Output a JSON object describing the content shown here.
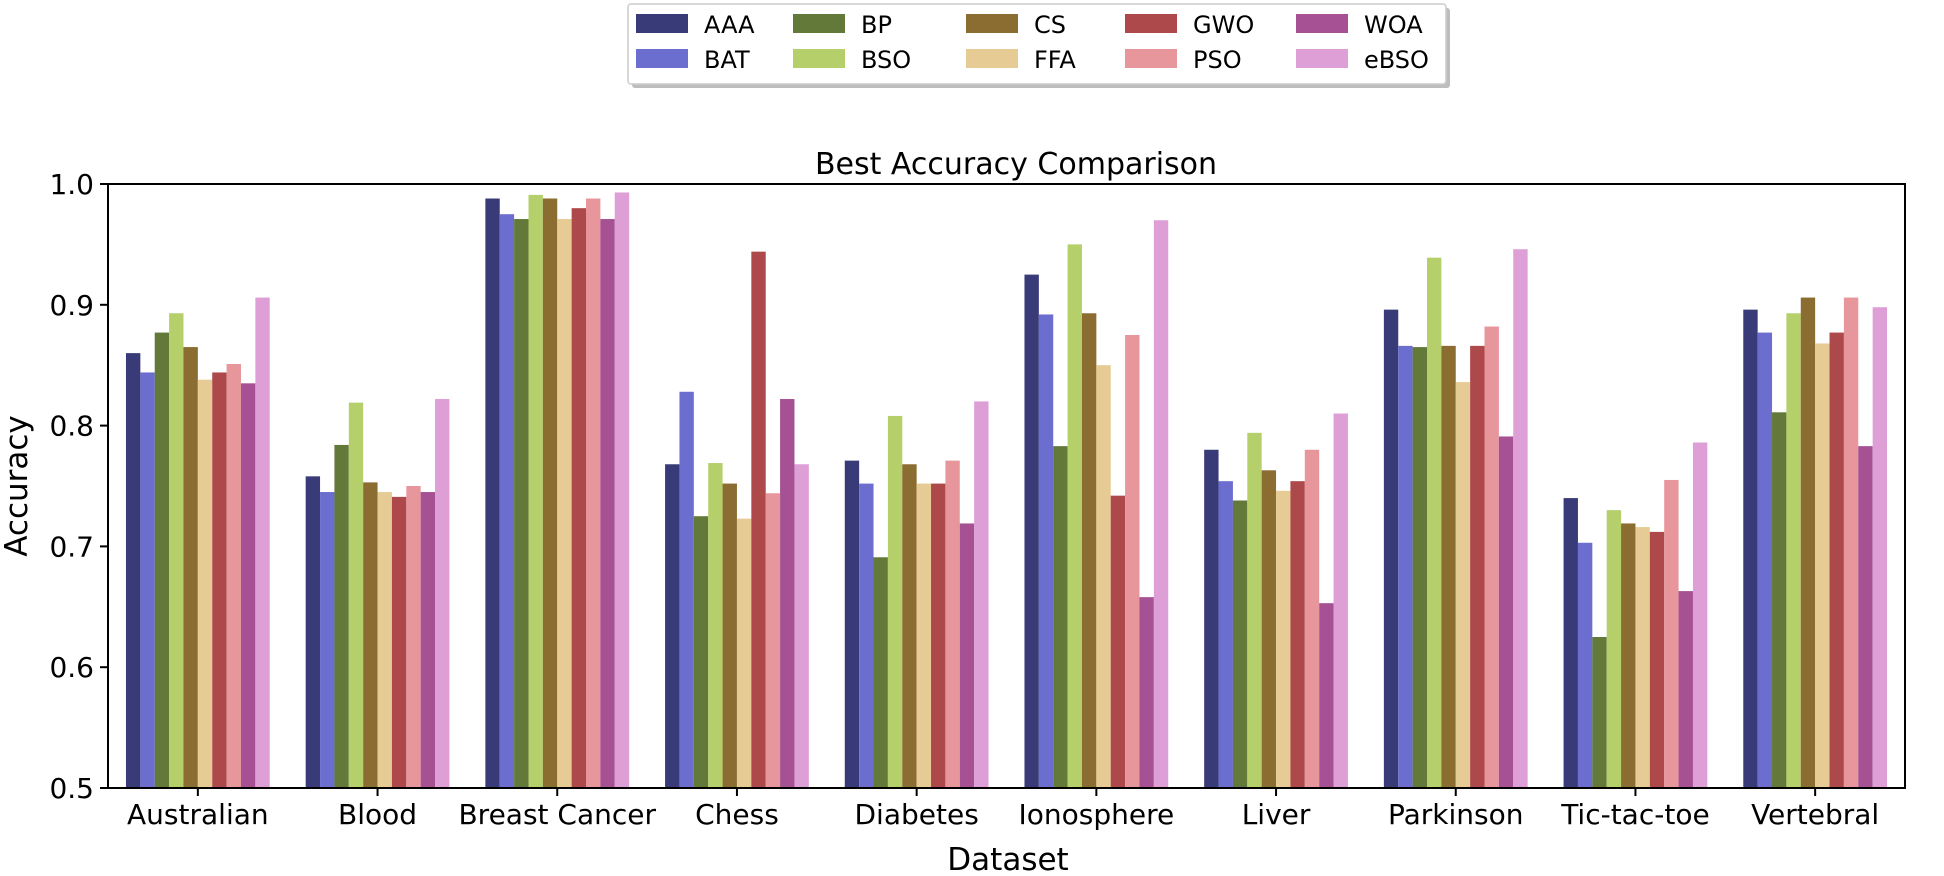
{
  "chart_data": {
    "type": "bar",
    "title": "Best Accuracy Comparison",
    "xlabel": "Dataset",
    "ylabel": "Accuracy",
    "ylim": [
      0.5,
      1.0
    ],
    "yticks": [
      "0.5",
      "0.6",
      "0.7",
      "0.8",
      "0.9",
      "1.0"
    ],
    "grid": false,
    "legend_position": "top-center",
    "categories": [
      "Australian",
      "Blood",
      "Breast Cancer",
      "Chess",
      "Diabetes",
      "Ionosphere",
      "Liver",
      "Parkinson",
      "Tic-tac-toe",
      "Vertebral"
    ],
    "series": [
      {
        "name": "AAA",
        "color": "#393b79",
        "values": [
          0.86,
          0.758,
          0.988,
          0.768,
          0.771,
          0.925,
          0.78,
          0.896,
          0.74,
          0.896
        ]
      },
      {
        "name": "BAT",
        "color": "#6b6ecf",
        "values": [
          0.844,
          0.745,
          0.975,
          0.828,
          0.752,
          0.892,
          0.754,
          0.866,
          0.703,
          0.877
        ]
      },
      {
        "name": "BP",
        "color": "#637939",
        "values": [
          0.877,
          0.784,
          0.971,
          0.725,
          0.691,
          0.783,
          0.738,
          0.865,
          0.625,
          0.811
        ]
      },
      {
        "name": "BSO",
        "color": "#b5cf6b",
        "values": [
          0.893,
          0.819,
          0.991,
          0.769,
          0.808,
          0.95,
          0.794,
          0.939,
          0.73,
          0.893
        ]
      },
      {
        "name": "CS",
        "color": "#8c6d31",
        "values": [
          0.865,
          0.753,
          0.988,
          0.752,
          0.768,
          0.893,
          0.763,
          0.866,
          0.719,
          0.906
        ]
      },
      {
        "name": "FFA",
        "color": "#e7cb94",
        "values": [
          0.838,
          0.745,
          0.971,
          0.723,
          0.752,
          0.85,
          0.746,
          0.836,
          0.716,
          0.868
        ]
      },
      {
        "name": "GWO",
        "color": "#ad494a",
        "values": [
          0.844,
          0.741,
          0.98,
          0.944,
          0.752,
          0.742,
          0.754,
          0.866,
          0.712,
          0.877
        ]
      },
      {
        "name": "PSO",
        "color": "#e7969c",
        "values": [
          0.851,
          0.75,
          0.988,
          0.744,
          0.771,
          0.875,
          0.78,
          0.882,
          0.755,
          0.906
        ]
      },
      {
        "name": "WOA",
        "color": "#a55194",
        "values": [
          0.835,
          0.745,
          0.971,
          0.822,
          0.719,
          0.658,
          0.653,
          0.791,
          0.663,
          0.783
        ]
      },
      {
        "name": "eBSO",
        "color": "#de9ed6",
        "values": [
          0.906,
          0.822,
          0.993,
          0.768,
          0.82,
          0.97,
          0.81,
          0.946,
          0.786,
          0.898
        ]
      }
    ]
  }
}
